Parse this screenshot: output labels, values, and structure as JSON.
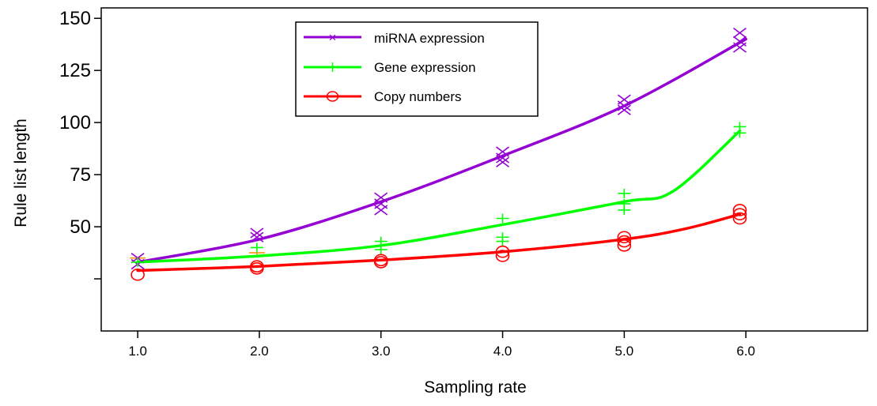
{
  "chart_data": {
    "type": "line",
    "xlabel": "Sampling rate",
    "ylabel": "Rule list length",
    "xlim": [
      0.7,
      7.0
    ],
    "ylim": [
      0,
      155
    ],
    "x_ticks": [
      "1.0",
      "2.0",
      "3.0",
      "4.0",
      "5.0",
      "6.0"
    ],
    "x_tick_values": [
      1.0,
      2.0,
      3.0,
      4.0,
      5.0,
      6.0
    ],
    "y_ticks": [
      "",
      "50",
      "75",
      "100",
      "125",
      "150"
    ],
    "y_tick_values": [
      25,
      50,
      75,
      100,
      125,
      150
    ],
    "grid": false,
    "legend_position": "top-center",
    "series": [
      {
        "name": "miRNA expression",
        "color": "#9400D3",
        "marker": "x",
        "x": [
          1.0,
          2.0,
          3.0,
          4.0,
          5.0,
          6.0
        ],
        "values": [
          33,
          44,
          62,
          84,
          108,
          140
        ],
        "samples": [
          [
            1.0,
            35
          ],
          [
            1.0,
            32
          ],
          [
            1.98,
            47
          ],
          [
            1.98,
            45
          ],
          [
            3.0,
            64
          ],
          [
            3.0,
            61
          ],
          [
            3.0,
            58
          ],
          [
            4.0,
            86
          ],
          [
            4.0,
            83
          ],
          [
            4.0,
            81
          ],
          [
            5.0,
            111
          ],
          [
            5.0,
            108
          ],
          [
            5.0,
            106
          ],
          [
            5.95,
            143
          ],
          [
            5.95,
            139
          ],
          [
            5.95,
            136
          ]
        ]
      },
      {
        "name": "Gene expression",
        "color": "#00FF00",
        "marker": "+",
        "x": [
          1.0,
          2.0,
          3.0,
          4.0,
          5.0,
          5.4,
          5.95
        ],
        "values": [
          33,
          36,
          41,
          51,
          62,
          67,
          96
        ],
        "samples": [
          [
            1.0,
            33
          ],
          [
            1.98,
            40
          ],
          [
            3.0,
            43
          ],
          [
            3.0,
            39
          ],
          [
            4.0,
            54
          ],
          [
            4.0,
            45
          ],
          [
            4.0,
            43
          ],
          [
            5.0,
            66
          ],
          [
            5.0,
            61
          ],
          [
            5.0,
            58
          ],
          [
            5.95,
            98
          ],
          [
            5.95,
            95
          ]
        ]
      },
      {
        "name": "Copy numbers",
        "color": "#FF0000",
        "marker": "o",
        "x": [
          1.0,
          2.0,
          3.0,
          4.0,
          5.0,
          5.5,
          5.95
        ],
        "values": [
          29,
          31,
          34,
          38,
          44,
          49,
          56
        ],
        "samples": [
          [
            1.0,
            27
          ],
          [
            1.98,
            31
          ],
          [
            1.98,
            30
          ],
          [
            3.0,
            34
          ],
          [
            3.0,
            33
          ],
          [
            4.0,
            38
          ],
          [
            4.0,
            36
          ],
          [
            5.0,
            45
          ],
          [
            5.0,
            43
          ],
          [
            5.0,
            41
          ],
          [
            5.95,
            58
          ],
          [
            5.95,
            56
          ],
          [
            5.95,
            54
          ]
        ]
      }
    ],
    "error_bar_color": "#FF8C00",
    "error_bars": [
      [
        1.0,
        33,
        35
      ],
      [
        1.98,
        36,
        37.5
      ]
    ]
  }
}
